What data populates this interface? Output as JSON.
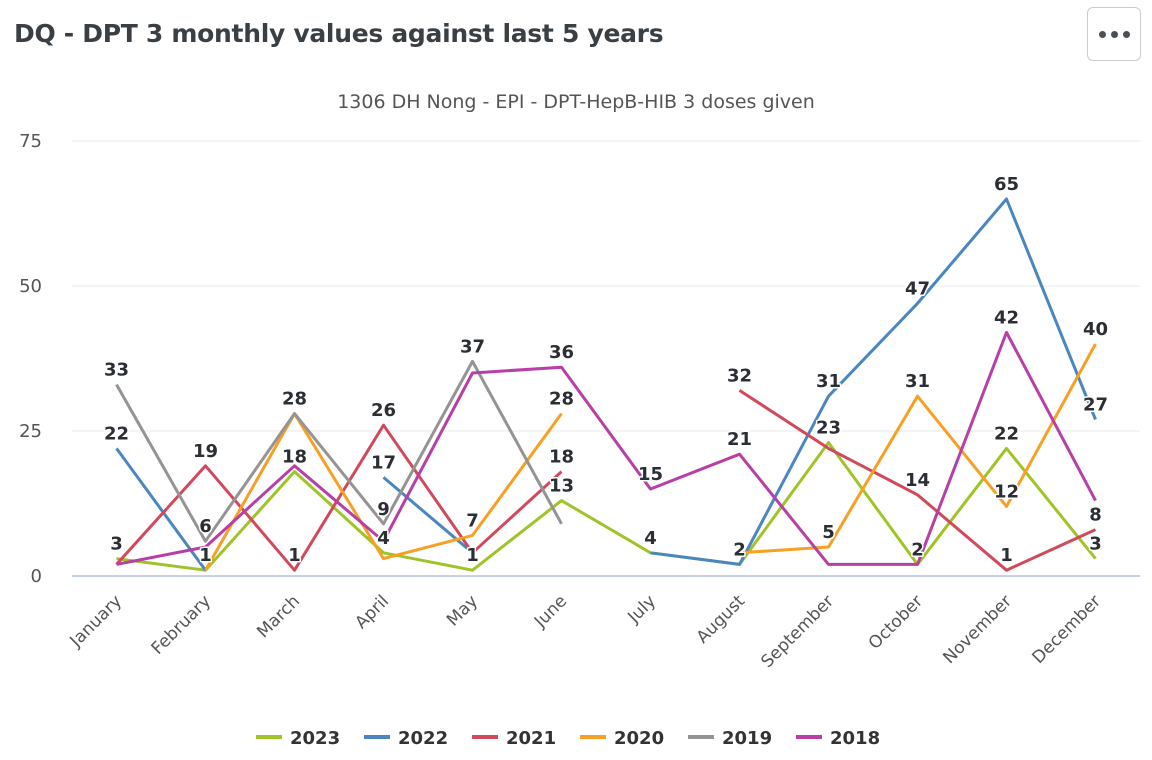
{
  "header": {
    "title": "DQ - DPT 3 monthly values against last 5 years",
    "menu_icon": "more-horizontal-icon"
  },
  "chart_data": {
    "type": "line",
    "subtitle": "1306 DH Nong - EPI - DPT-HepB-HIB 3 doses given",
    "categories": [
      "January",
      "February",
      "March",
      "April",
      "May",
      "June",
      "July",
      "August",
      "September",
      "October",
      "November",
      "December"
    ],
    "ylim": [
      0,
      75
    ],
    "yticks": [
      0,
      25,
      50,
      75
    ],
    "grid": true,
    "legend_position": "bottom",
    "series": [
      {
        "name": "2023",
        "color": "#a0c327",
        "values": [
          3,
          1,
          18,
          4,
          1,
          13,
          4,
          2,
          23,
          2,
          22,
          3
        ]
      },
      {
        "name": "2022",
        "color": "#4a86c0",
        "values": [
          22,
          1,
          null,
          17,
          4,
          null,
          4,
          2,
          31,
          47,
          65,
          27
        ]
      },
      {
        "name": "2021",
        "color": "#d1495b",
        "values": [
          2,
          19,
          1,
          26,
          4,
          18,
          null,
          32,
          22,
          14,
          1,
          8
        ]
      },
      {
        "name": "2020",
        "color": "#f7a024",
        "values": [
          null,
          1,
          28,
          3,
          7,
          28,
          null,
          4,
          5,
          31,
          12,
          40
        ]
      },
      {
        "name": "2019",
        "color": "#959393",
        "values": [
          33,
          6,
          28,
          9,
          37,
          9,
          null,
          null,
          null,
          null,
          null,
          null
        ]
      },
      {
        "name": "2018",
        "color": "#b83fa5",
        "values": [
          2,
          5,
          19,
          6,
          35,
          36,
          15,
          21,
          2,
          2,
          42,
          13
        ]
      }
    ],
    "labels": [
      {
        "text": "33",
        "series": "2019",
        "i": 0
      },
      {
        "text": "22",
        "series": "2022",
        "i": 0
      },
      {
        "text": "3",
        "series": "2023",
        "i": 0
      },
      {
        "text": "19",
        "series": "2021",
        "i": 1
      },
      {
        "text": "6",
        "series": "2019",
        "i": 1
      },
      {
        "text": "1",
        "series": "2023",
        "i": 1
      },
      {
        "text": "28",
        "series": "2019",
        "i": 2
      },
      {
        "text": "18",
        "series": "2023",
        "i": 2
      },
      {
        "text": "1",
        "series": "2021",
        "i": 2
      },
      {
        "text": "26",
        "series": "2021",
        "i": 3
      },
      {
        "text": "17",
        "series": "2022",
        "i": 3
      },
      {
        "text": "9",
        "series": "2019",
        "i": 3
      },
      {
        "text": "4",
        "series": "2023",
        "i": 3
      },
      {
        "text": "37",
        "series": "2019",
        "i": 4
      },
      {
        "text": "7",
        "series": "2020",
        "i": 4
      },
      {
        "text": "1",
        "series": "2023",
        "i": 4
      },
      {
        "text": "36",
        "series": "2018",
        "i": 5
      },
      {
        "text": "28",
        "series": "2020",
        "i": 5
      },
      {
        "text": "18",
        "series": "2021",
        "i": 5
      },
      {
        "text": "13",
        "series": "2023",
        "i": 5
      },
      {
        "text": "15",
        "series": "2018",
        "i": 6
      },
      {
        "text": "4",
        "series": "2023",
        "i": 6
      },
      {
        "text": "32",
        "series": "2021",
        "i": 7
      },
      {
        "text": "21",
        "series": "2018",
        "i": 7
      },
      {
        "text": "2",
        "series": "2022",
        "i": 7
      },
      {
        "text": "31",
        "series": "2022",
        "i": 8
      },
      {
        "text": "23",
        "series": "2023",
        "i": 8
      },
      {
        "text": "5",
        "series": "2020",
        "i": 8
      },
      {
        "text": "47",
        "series": "2022",
        "i": 9
      },
      {
        "text": "31",
        "series": "2020",
        "i": 9
      },
      {
        "text": "14",
        "series": "2021",
        "i": 9
      },
      {
        "text": "2",
        "series": "2023",
        "i": 9
      },
      {
        "text": "65",
        "series": "2022",
        "i": 10
      },
      {
        "text": "42",
        "series": "2018",
        "i": 10
      },
      {
        "text": "22",
        "series": "2023",
        "i": 10
      },
      {
        "text": "12",
        "series": "2020",
        "i": 10
      },
      {
        "text": "1",
        "series": "2021",
        "i": 10
      },
      {
        "text": "40",
        "series": "2020",
        "i": 11
      },
      {
        "text": "27",
        "series": "2022",
        "i": 11
      },
      {
        "text": "8",
        "series": "2021",
        "i": 11
      },
      {
        "text": "3",
        "series": "2023",
        "i": 11
      }
    ]
  }
}
